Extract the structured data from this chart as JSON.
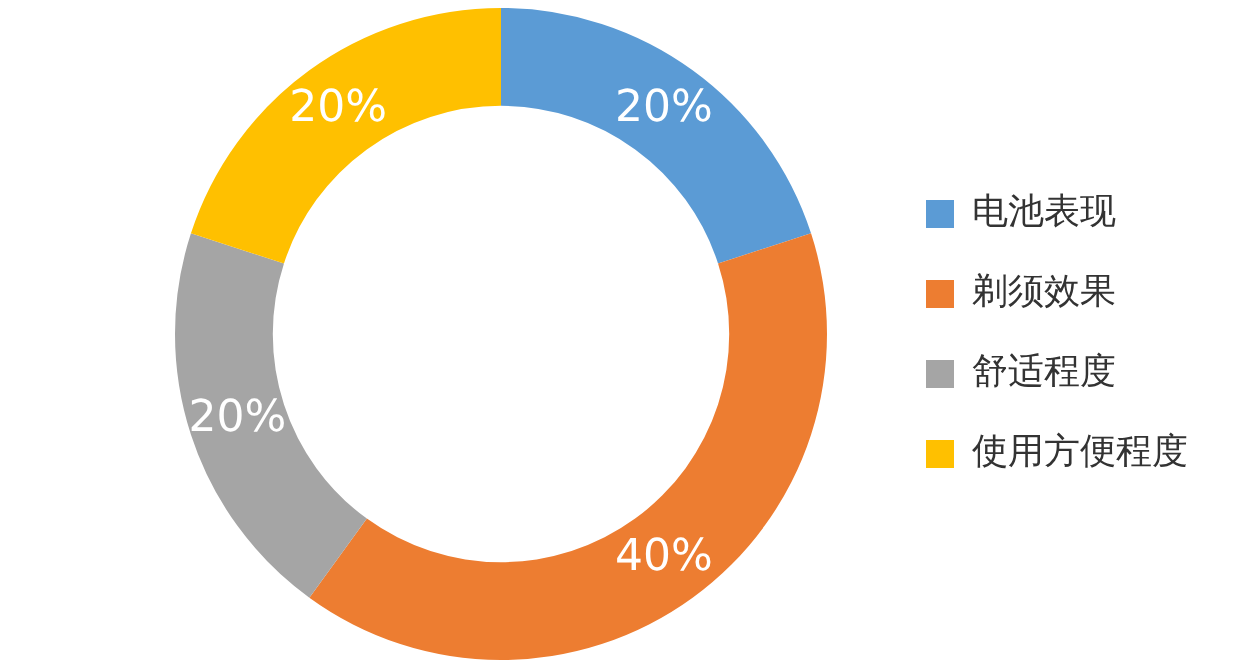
{
  "chart_data": {
    "type": "donut",
    "categories": [
      "电池表现",
      "剃须效果",
      "舒适程度",
      "使用方便程度"
    ],
    "values": [
      20,
      40,
      20,
      20
    ],
    "colors": [
      "#5b9bd5",
      "#ed7d31",
      "#a5a5a5",
      "#ffc000"
    ],
    "value_labels": [
      "20%",
      "40%",
      "20%",
      "20%"
    ],
    "legend": "right"
  }
}
